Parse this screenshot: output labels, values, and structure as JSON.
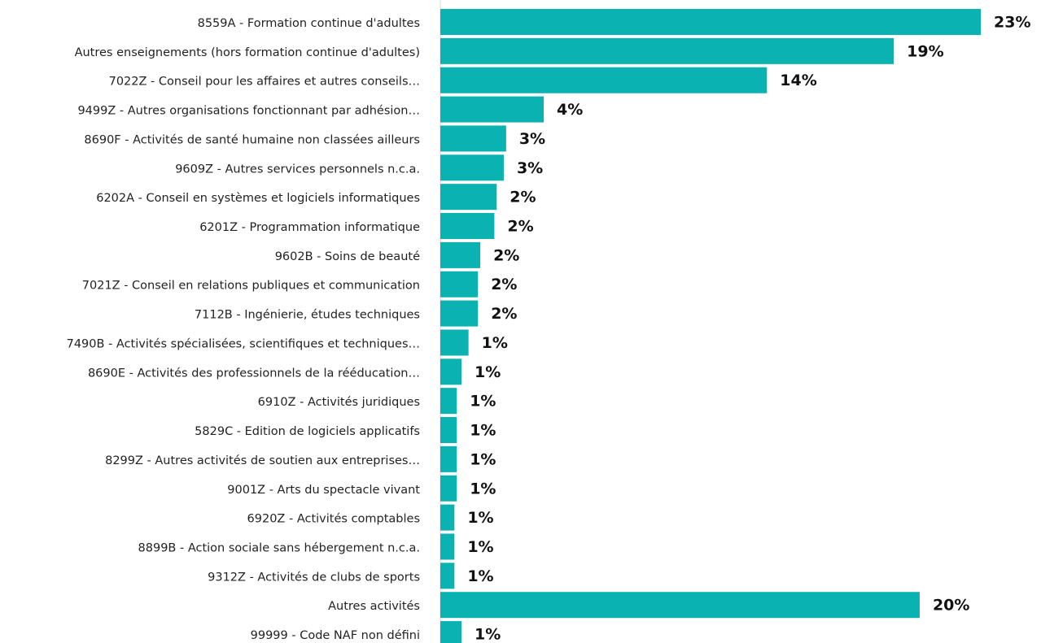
{
  "chart_data": {
    "type": "bar",
    "orientation": "horizontal",
    "color": "#0ab3b1",
    "categories": [
      "8559A - Formation continue d'adultes",
      "Autres enseignements (hors formation continue d'adultes)",
      "7022Z - Conseil pour les affaires et autres conseils…",
      "9499Z - Autres organisations fonctionnant par adhésion…",
      "8690F - Activités de santé humaine non classées ailleurs",
      "9609Z - Autres services personnels n.c.a.",
      "6202A - Conseil en systèmes et logiciels informatiques",
      "6201Z - Programmation informatique",
      "9602B - Soins de beauté",
      "7021Z - Conseil en relations publiques et communication",
      "7112B - Ingénierie, études techniques",
      "7490B - Activités spécialisées, scientifiques et techniques…",
      "8690E - Activités des professionnels de la rééducation…",
      "6910Z - Activités juridiques",
      "5829C - Edition de logiciels applicatifs",
      "8299Z - Autres activités de soutien aux entreprises…",
      "9001Z - Arts du spectacle vivant",
      "6920Z - Activités comptables",
      "8899B - Action sociale sans hébergement n.c.a.",
      "9312Z - Activités de clubs de sports",
      "Autres activités",
      "99999 - Code NAF non défini"
    ],
    "values": [
      23.0,
      19.3,
      13.9,
      4.4,
      2.8,
      2.7,
      2.4,
      2.3,
      1.7,
      1.6,
      1.6,
      1.2,
      0.9,
      0.7,
      0.7,
      0.7,
      0.7,
      0.6,
      0.6,
      0.6,
      20.4,
      0.9
    ],
    "value_labels": [
      "23%",
      "19%",
      "14%",
      "4%",
      "3%",
      "3%",
      "2%",
      "2%",
      "2%",
      "2%",
      "2%",
      "1%",
      "1%",
      "1%",
      "1%",
      "1%",
      "1%",
      "1%",
      "1%",
      "1%",
      "20%",
      "1%"
    ],
    "xlim": [
      0,
      23
    ]
  }
}
